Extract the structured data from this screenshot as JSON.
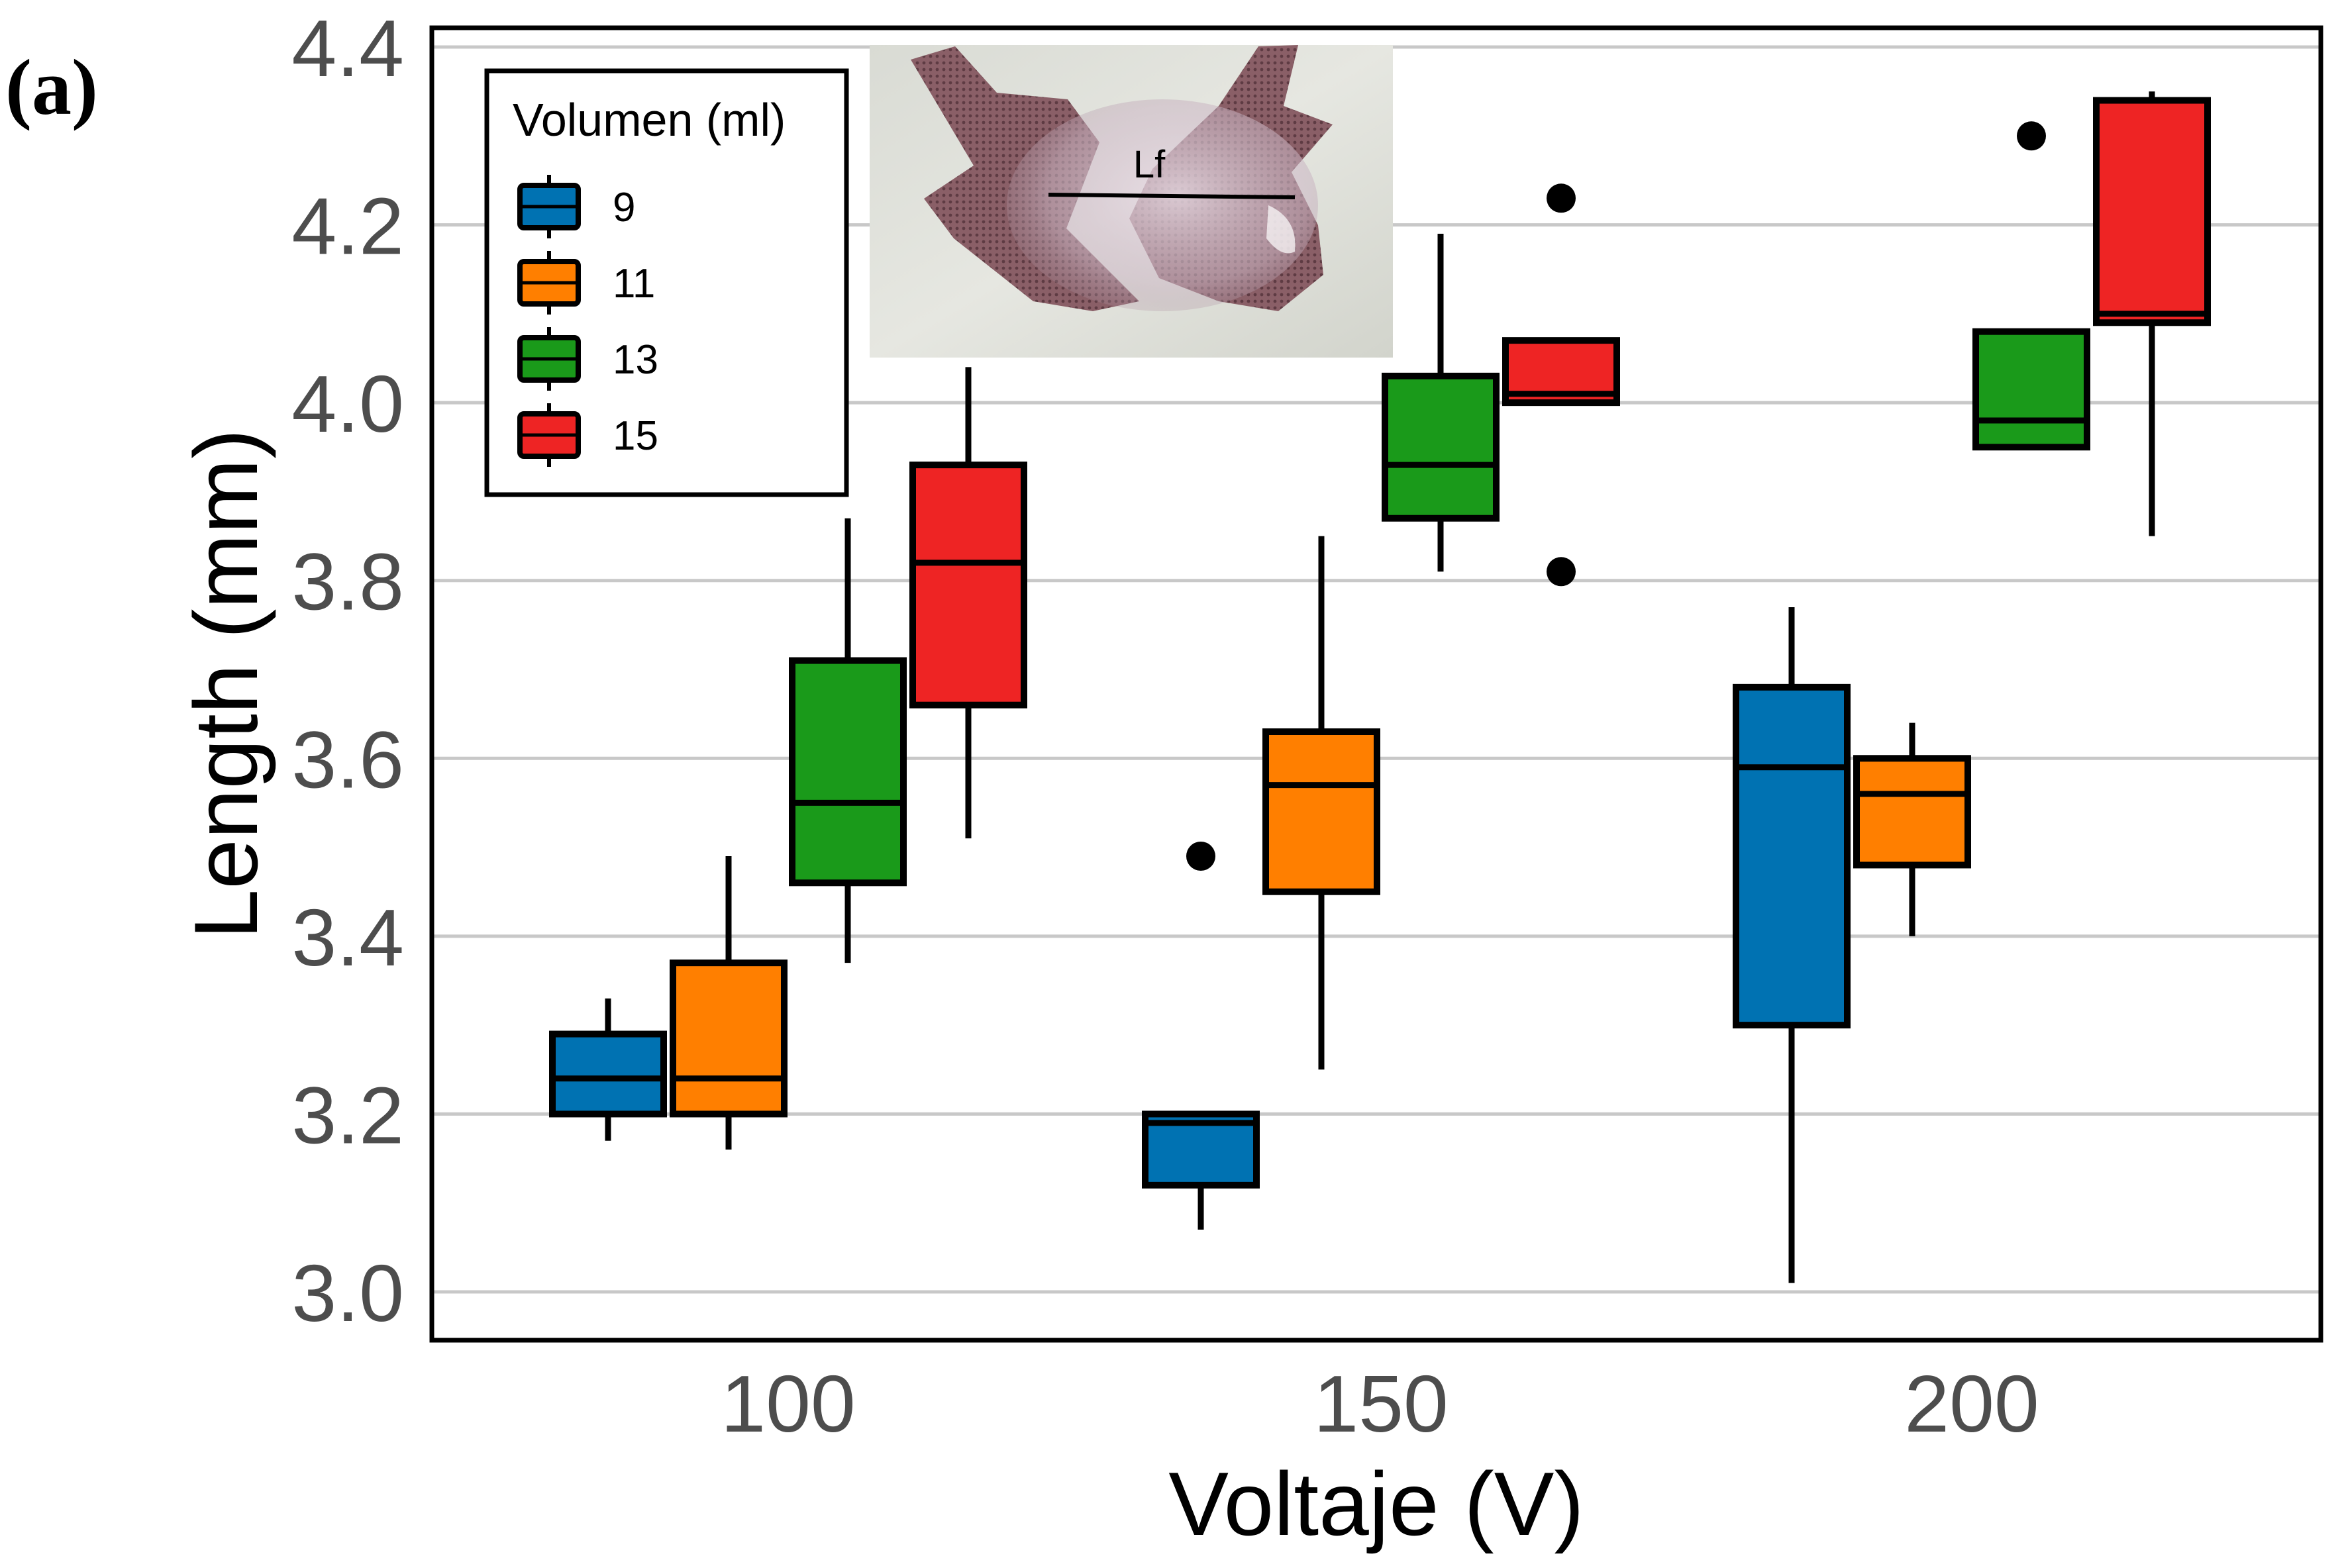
{
  "panel_label": "(a)",
  "chart_data": {
    "type": "box",
    "xlabel": "Voltaje (V)",
    "ylabel": "Length (mm)",
    "categories": [
      "100",
      "150",
      "200"
    ],
    "yticks": [
      "3.0",
      "3.2",
      "3.4",
      "3.6",
      "3.8",
      "4.0",
      "4.2",
      "4.4"
    ],
    "ylim": [
      2.97,
      4.45
    ],
    "grid": true,
    "legend": {
      "title": "Volumen (ml)",
      "position": "top-left",
      "entries": [
        {
          "label": "9",
          "color": "#0072b2"
        },
        {
          "label": "11",
          "color": "#ff7f00"
        },
        {
          "label": "13",
          "color": "#1a9a1a"
        },
        {
          "label": "15",
          "color": "#ee2424"
        }
      ]
    },
    "series": [
      {
        "name": "9",
        "color": "#0072b2",
        "boxes": [
          {
            "category": "100",
            "whisker_low": 3.17,
            "q1": 3.2,
            "median": 3.24,
            "q3": 3.29,
            "whisker_high": 3.33,
            "outliers": []
          },
          {
            "category": "150",
            "whisker_low": 3.07,
            "q1": 3.12,
            "median": 3.19,
            "q3": 3.2,
            "whisker_high": 3.2,
            "outliers": [
              3.49
            ]
          },
          {
            "category": "200",
            "whisker_low": 3.01,
            "q1": 3.3,
            "median": 3.59,
            "q3": 3.68,
            "whisker_high": 3.77,
            "outliers": []
          }
        ]
      },
      {
        "name": "11",
        "color": "#ff7f00",
        "boxes": [
          {
            "category": "100",
            "whisker_low": 3.16,
            "q1": 3.2,
            "median": 3.24,
            "q3": 3.37,
            "whisker_high": 3.49,
            "outliers": []
          },
          {
            "category": "150",
            "whisker_low": 3.25,
            "q1": 3.45,
            "median": 3.57,
            "q3": 3.63,
            "whisker_high": 3.85,
            "outliers": []
          },
          {
            "category": "200",
            "whisker_low": 3.4,
            "q1": 3.48,
            "median": 3.56,
            "q3": 3.6,
            "whisker_high": 3.64,
            "outliers": []
          }
        ]
      },
      {
        "name": "13",
        "color": "#1a9a1a",
        "boxes": [
          {
            "category": "100",
            "whisker_low": 3.37,
            "q1": 3.46,
            "median": 3.55,
            "q3": 3.71,
            "whisker_high": 3.87,
            "outliers": []
          },
          {
            "category": "150",
            "whisker_low": 3.81,
            "q1": 3.87,
            "median": 3.93,
            "q3": 4.03,
            "whisker_high": 4.19,
            "outliers": []
          },
          {
            "category": "200",
            "whisker_low": 3.95,
            "q1": 3.95,
            "median": 3.98,
            "q3": 4.08,
            "whisker_high": 4.08,
            "outliers": [
              4.3
            ]
          }
        ]
      },
      {
        "name": "15",
        "color": "#ee2424",
        "boxes": [
          {
            "category": "100",
            "whisker_low": 3.51,
            "q1": 3.66,
            "median": 3.82,
            "q3": 3.93,
            "whisker_high": 4.04,
            "outliers": []
          },
          {
            "category": "150",
            "whisker_low": 4.0,
            "q1": 4.0,
            "median": 4.01,
            "q3": 4.07,
            "whisker_high": 4.07,
            "outliers": [
              4.23,
              3.81
            ]
          },
          {
            "category": "200",
            "whisker_low": 3.85,
            "q1": 4.09,
            "median": 4.1,
            "q3": 4.34,
            "whisker_high": 4.35,
            "outliers": []
          }
        ]
      }
    ],
    "inset": {
      "label": "Lf"
    }
  }
}
